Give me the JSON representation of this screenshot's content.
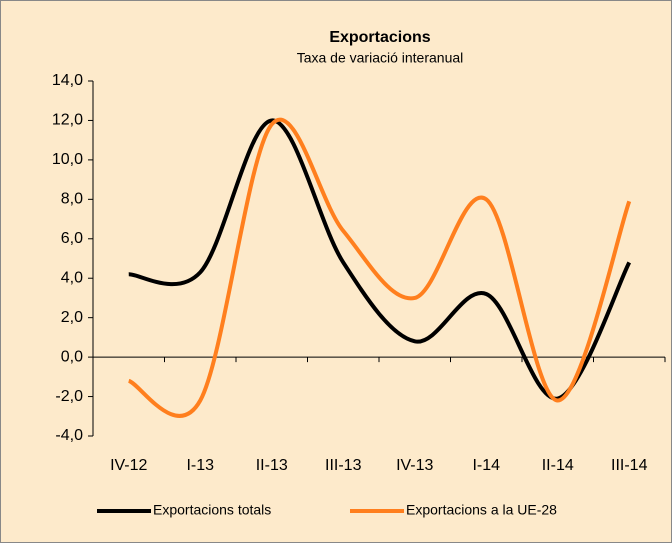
{
  "chart_data": {
    "type": "line",
    "title": "Exportacions",
    "subtitle": "Taxa de variació interanual",
    "categories": [
      "IV-12",
      "I-13",
      "II-13",
      "III-13",
      "IV-13",
      "I-14",
      "II-14",
      "III-14"
    ],
    "series": [
      {
        "name": "Exportacions totals",
        "color": "#000000",
        "values": [
          4.2,
          4.3,
          12.0,
          4.8,
          0.8,
          3.2,
          -2.1,
          4.8
        ]
      },
      {
        "name": "Exportacions a la UE-28",
        "color": "#ff7f1e",
        "values": [
          -1.2,
          -2.2,
          11.8,
          6.4,
          3.0,
          8.0,
          -2.2,
          7.9
        ]
      }
    ],
    "ylim": [
      -4,
      14
    ],
    "yticks": [
      {
        "value": -4,
        "label": "-4,0"
      },
      {
        "value": -2,
        "label": "-2,0"
      },
      {
        "value": 0,
        "label": "0,0"
      },
      {
        "value": 2,
        "label": "2,0"
      },
      {
        "value": 4,
        "label": "4,0"
      },
      {
        "value": 6,
        "label": "6,0"
      },
      {
        "value": 8,
        "label": "8,0"
      },
      {
        "value": 10,
        "label": "10,0"
      },
      {
        "value": 12,
        "label": "12,0"
      },
      {
        "value": 14,
        "label": "14,0"
      }
    ],
    "grid": false,
    "legend": "bottom"
  }
}
